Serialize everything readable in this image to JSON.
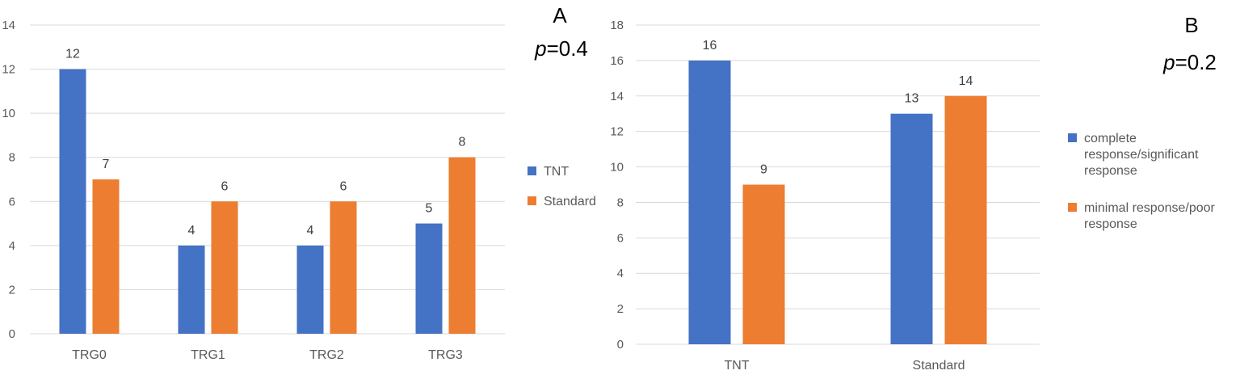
{
  "colors": {
    "series1": "#4472C4",
    "series2": "#ED7D31"
  },
  "chart_data": [
    {
      "type": "bar",
      "panel_label": "A",
      "p_symbol": "p",
      "p_rest": "=0.4",
      "categories": [
        "TRG0",
        "TRG1",
        "TRG2",
        "TRG3"
      ],
      "series": [
        {
          "name": "TNT",
          "values": [
            12,
            4,
            4,
            5
          ]
        },
        {
          "name": "Standard",
          "values": [
            7,
            6,
            6,
            8
          ]
        }
      ],
      "ylim": [
        0,
        14
      ],
      "yticks": [
        "0",
        "2",
        "4",
        "6",
        "8",
        "10",
        "12",
        "14"
      ],
      "legend": [
        [
          "TNT"
        ],
        [
          "Standard"
        ]
      ],
      "title": "",
      "xlabel": "",
      "ylabel": ""
    },
    {
      "type": "bar",
      "panel_label": "B",
      "p_symbol": "p",
      "p_rest": "=0.2",
      "categories": [
        "TNT",
        "Standard"
      ],
      "series": [
        {
          "name": "complete response/significant response",
          "values": [
            16,
            13
          ]
        },
        {
          "name": "minimal response/poor response",
          "values": [
            9,
            14
          ]
        }
      ],
      "ylim": [
        0,
        18
      ],
      "yticks": [
        "0",
        "2",
        "4",
        "6",
        "8",
        "10",
        "12",
        "14",
        "16",
        "18"
      ],
      "legend": [
        [
          "complete",
          "response/significant",
          "response"
        ],
        [
          "minimal response/poor",
          "response"
        ]
      ],
      "title": "",
      "xlabel": "",
      "ylabel": ""
    }
  ]
}
